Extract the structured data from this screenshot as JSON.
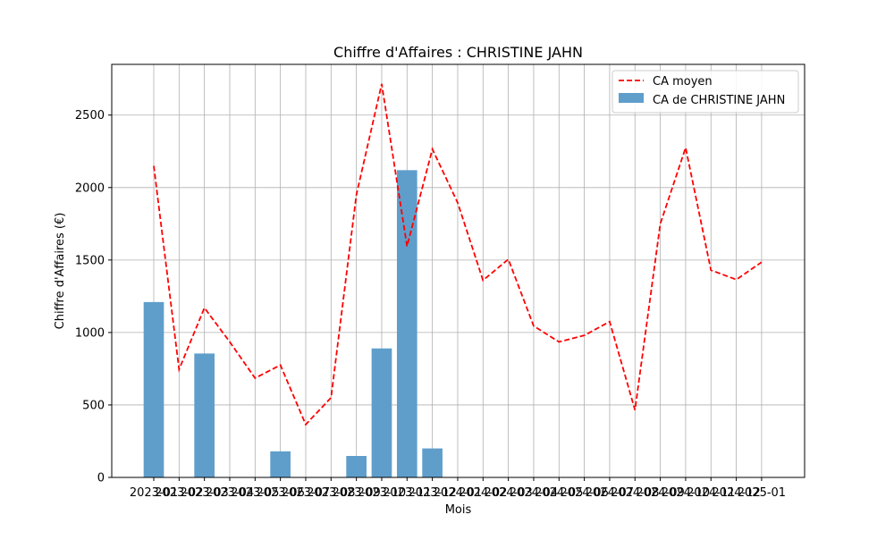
{
  "chart_data": {
    "type": "bar",
    "title": "Chiffre d'Affaires : CHRISTINE JAHN",
    "xlabel": "Mois",
    "ylabel": "Chiffre d'Affaires (€)",
    "ylim": [
      0,
      2850
    ],
    "yticks": [
      0,
      500,
      1000,
      1500,
      2000,
      2500
    ],
    "grid": true,
    "legend_position": "top-right",
    "categories": [
      "2023-01",
      "2023-02",
      "2023-03",
      "2023-04",
      "2023-05",
      "2023-06",
      "2023-07",
      "2023-08",
      "2023-09",
      "2023-10",
      "2023-11",
      "2023-12",
      "2024-01",
      "2024-02",
      "2024-03",
      "2024-04",
      "2024-05",
      "2024-06",
      "2024-07",
      "2024-08",
      "2024-09",
      "2024-10",
      "2024-11",
      "2024-12",
      "2025-01"
    ],
    "series": [
      {
        "name": "CA de CHRISTINE JAHN",
        "kind": "bar",
        "color": "#5f9ecb",
        "values": [
          1210,
          0,
          855,
          0,
          0,
          180,
          0,
          0,
          148,
          890,
          2120,
          200,
          0,
          0,
          0,
          0,
          0,
          0,
          0,
          0,
          0,
          0,
          0,
          0,
          0
        ]
      },
      {
        "name": "CA moyen",
        "kind": "line",
        "style": "dashed",
        "color": "#ff0000",
        "values": [
          2150,
          745,
          1170,
          935,
          685,
          775,
          365,
          550,
          1950,
          2715,
          1595,
          2265,
          1895,
          1360,
          1505,
          1045,
          935,
          980,
          1075,
          465,
          1750,
          2275,
          1430,
          1365,
          1485
        ]
      }
    ]
  }
}
